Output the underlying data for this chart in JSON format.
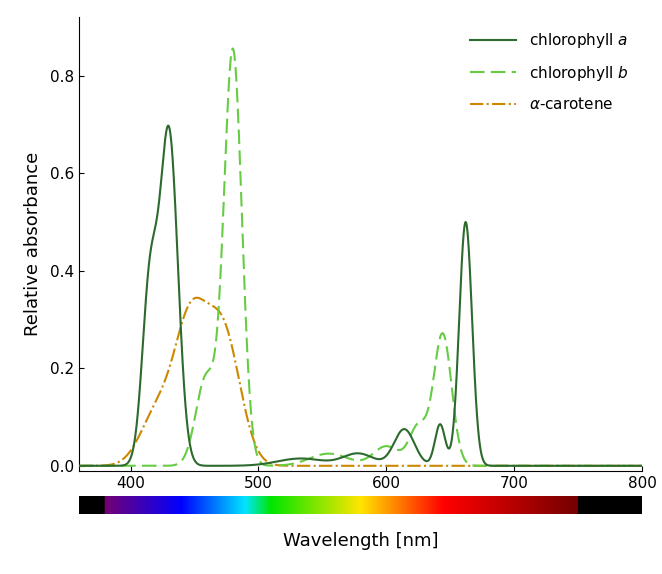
{
  "title": "",
  "xlabel": "Wavelength [nm]",
  "ylabel": "Relative absorbance",
  "xlim": [
    360,
    800
  ],
  "ylim": [
    -0.01,
    0.92
  ],
  "yticks": [
    0.0,
    0.2,
    0.4,
    0.6,
    0.8
  ],
  "xticks": [
    400,
    500,
    600,
    700,
    800
  ],
  "chlorophyll_a_color": "#2d6a2d",
  "chlorophyll_b_color": "#66cc44",
  "carotene_color": "#cc8800",
  "figsize": [
    6.62,
    5.74
  ],
  "dpi": 100
}
